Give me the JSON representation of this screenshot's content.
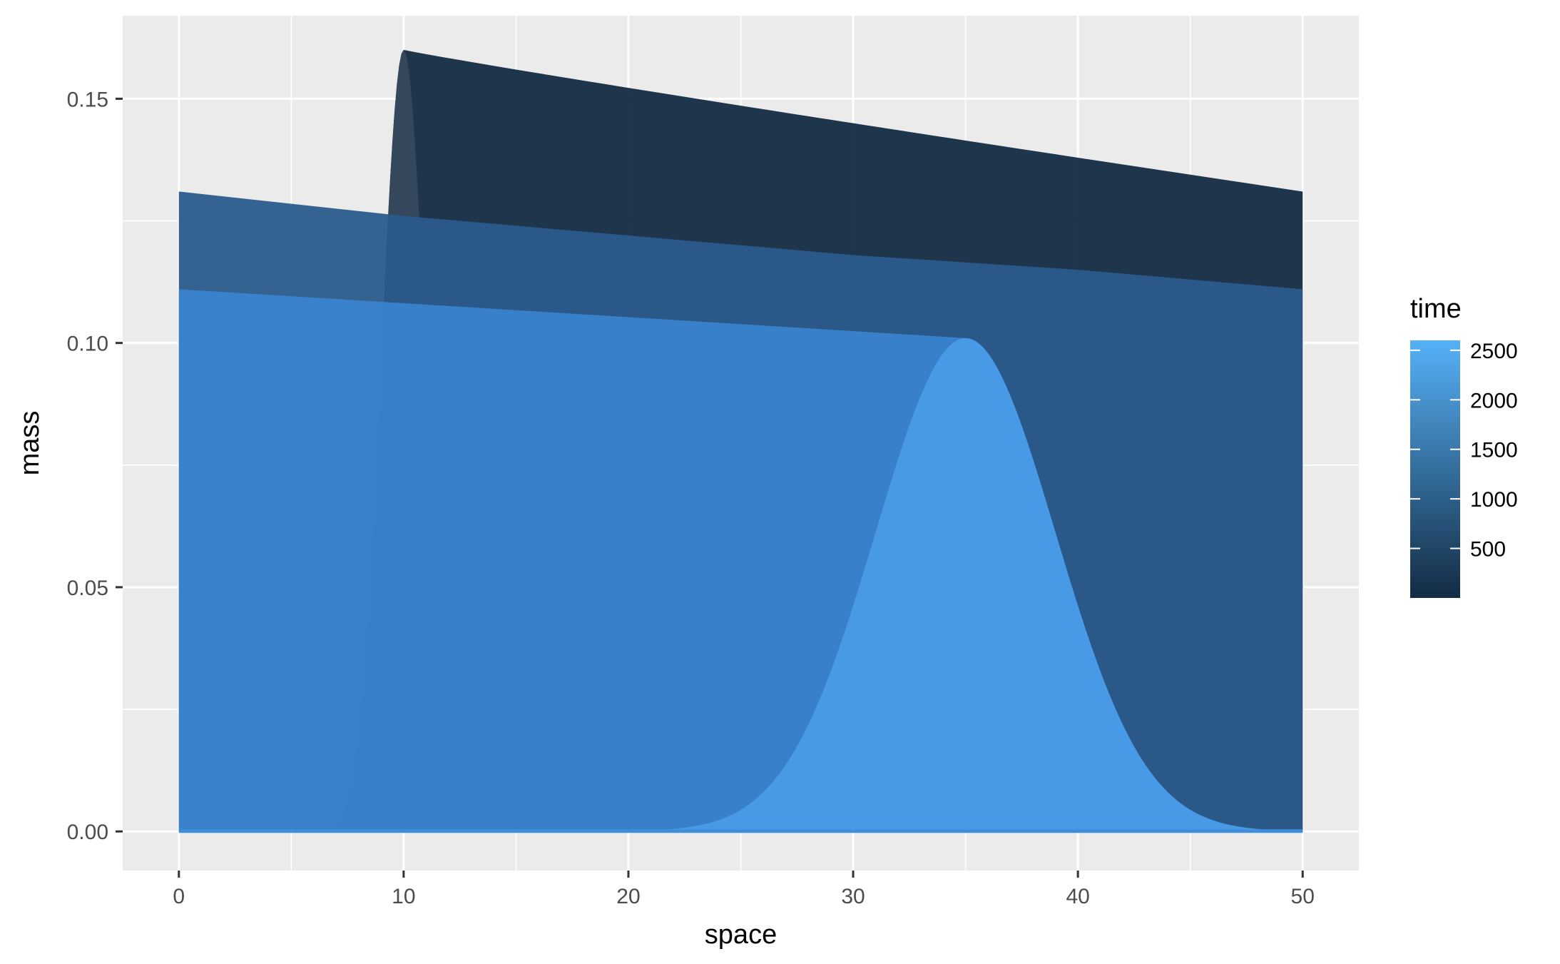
{
  "chart_data": {
    "type": "area",
    "xlabel": "space",
    "ylabel": "mass",
    "xlim": [
      -2.5,
      52.5
    ],
    "ylim": [
      -0.008,
      0.167
    ],
    "x_ticks": [
      0,
      10,
      20,
      30,
      40,
      50
    ],
    "x_tick_labels": [
      "0",
      "10",
      "20",
      "30",
      "40",
      "50"
    ],
    "y_ticks": [
      0.0,
      0.05,
      0.1,
      0.15
    ],
    "y_tick_labels": [
      "0.00",
      "0.05",
      "0.10",
      "0.15"
    ],
    "grid": true,
    "legend": {
      "title": "time",
      "position": "right",
      "type": "colorbar",
      "range": [
        0,
        2600
      ],
      "breaks": [
        500,
        1000,
        1500,
        2000,
        2500
      ],
      "labels": [
        "500",
        "1000",
        "1500",
        "2000",
        "2500"
      ],
      "low_color": "#132B43",
      "high_color": "#56B1F7"
    },
    "series": [
      {
        "time": 0,
        "color": "#132B43",
        "shape": "gaussian-with-plateau",
        "x": [
          0,
          8,
          9,
          10,
          11,
          12,
          20,
          30,
          40,
          50
        ],
        "y": [
          0.0,
          0.0,
          0.06,
          0.16,
          0.155,
          0.155,
          0.152,
          0.145,
          0.138,
          0.131
        ]
      },
      {
        "time": 1300,
        "color": "#2A5B8C",
        "x": [
          0,
          10,
          20,
          30,
          40,
          50
        ],
        "y": [
          0.131,
          0.126,
          0.122,
          0.118,
          0.115,
          0.111
        ]
      },
      {
        "time": 2000,
        "color": "#3A83CF",
        "x": [
          0,
          10,
          20,
          30,
          35,
          50
        ],
        "y": [
          0.111,
          0.108,
          0.105,
          0.103,
          0.101,
          0.0
        ]
      },
      {
        "time": 2600,
        "color": "#4DA2EF",
        "shape": "gaussian-peak",
        "x": [
          0,
          20,
          25,
          30,
          35,
          40,
          45,
          50
        ],
        "y": [
          0.0,
          0.0,
          0.008,
          0.055,
          0.101,
          0.055,
          0.008,
          0.0
        ]
      }
    ]
  }
}
